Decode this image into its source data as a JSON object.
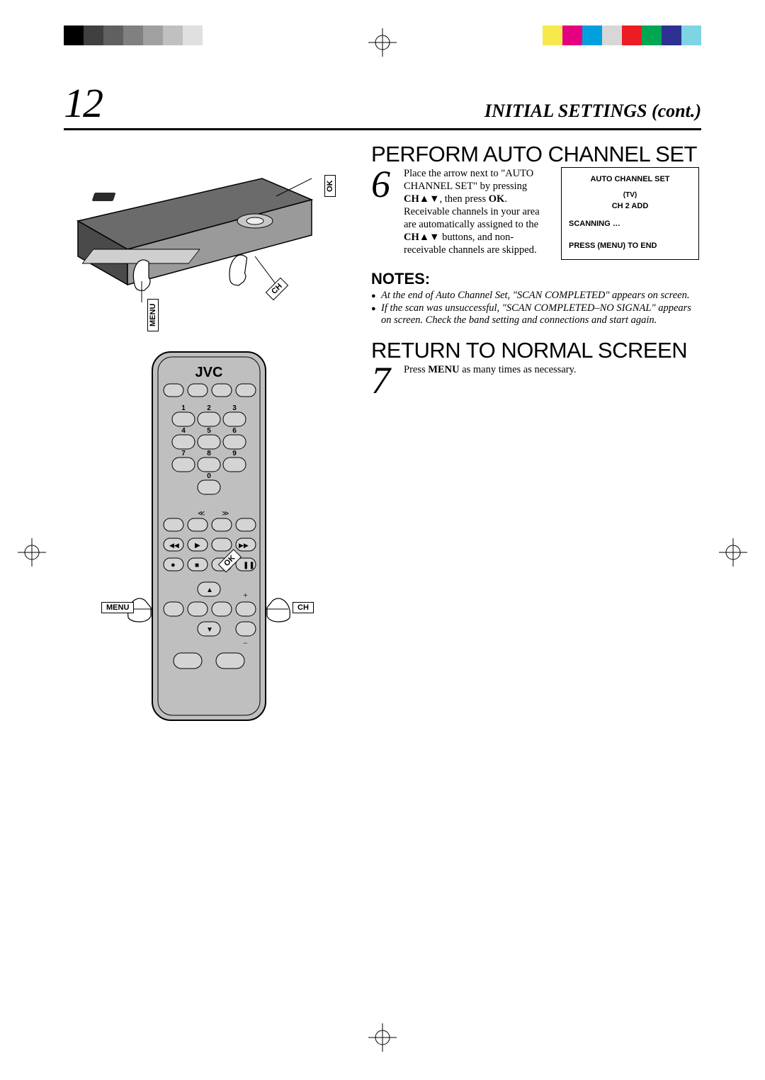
{
  "page_number": "12",
  "header_title": "INITIAL SETTINGS (cont.)",
  "color_bars_left": [
    "#000000",
    "#404040",
    "#606060",
    "#808080",
    "#a0a0a0",
    "#c0c0c0",
    "#e0e0e0"
  ],
  "color_bars_right": [
    "#f7e94b",
    "#e4007f",
    "#00a0df",
    "#d7d7d7",
    "#ec1c24",
    "#00a651",
    "#2e3192",
    "#7fd4e3"
  ],
  "callouts": {
    "vcr_ok": "OK",
    "vcr_ch": "CH",
    "vcr_menu": "MENU",
    "remote_ok": "OK",
    "remote_menu": "MENU",
    "remote_ch": "CH"
  },
  "sections": [
    {
      "heading": "PERFORM AUTO CHANNEL SET",
      "step_num": "6",
      "text_html": "Place the arrow next to \"AUTO CHANNEL SET\" by pressing <b>CH</b>▲▼, then press <b>OK</b>. Receivable channels in your area are automatically assigned to the <b>CH</b>▲▼ buttons, and non-receivable channels are skipped.",
      "osd": {
        "title": "AUTO CHANNEL SET",
        "tv": "(TV)",
        "ch_line": "CH    2   ADD",
        "scanning": "SCANNING …",
        "footer": "PRESS (MENU) TO END"
      }
    },
    {
      "notes_heading": "NOTES:",
      "notes": [
        "At the end of Auto Channel Set, \"SCAN COMPLETED\" appears on screen.",
        "If the scan was unsuccessful, \"SCAN COMPLETED–NO SIGNAL\" appears on screen. Check the band setting and connections and start again."
      ]
    },
    {
      "heading": "RETURN TO NORMAL SCREEN",
      "step_num": "7",
      "text_html": "Press <b>MENU</b> as many times as necessary."
    }
  ],
  "remote": {
    "brand": "JVC",
    "digits": [
      "1",
      "2",
      "3",
      "4",
      "5",
      "6",
      "7",
      "8",
      "9",
      "0"
    ]
  }
}
